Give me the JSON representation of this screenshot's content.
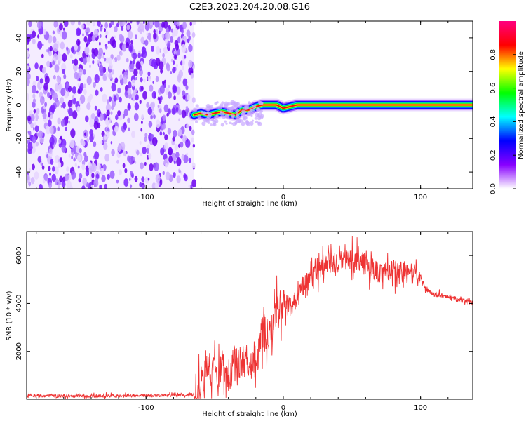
{
  "chart_data": [
    {
      "type": "heatmap",
      "title": "C2E3.2023.204.20.08.G16",
      "xlabel": "Height of straight line (km)",
      "ylabel": "Frequency (Hz)",
      "xlim": [
        -187,
        138
      ],
      "ylim": [
        -50,
        50
      ],
      "xticks": [
        -100,
        0,
        100
      ],
      "yticks": [
        -40,
        -20,
        0,
        20,
        40
      ],
      "noise_region_x": [
        -187,
        -65
      ],
      "signal_line": {
        "x": [
          -65,
          -60,
          -55,
          -50,
          -45,
          -40,
          -35,
          -30,
          -25,
          -20,
          -15,
          -10,
          -5,
          0,
          5,
          10,
          20,
          40,
          60,
          80,
          95,
          100,
          138
        ],
        "freq": [
          -6,
          -5,
          -6,
          -5,
          -4,
          -5,
          -6,
          -3,
          -3,
          -1,
          0,
          0,
          0,
          -2,
          -1,
          0,
          0,
          0,
          0,
          0,
          0,
          0,
          0
        ]
      },
      "colorbar": {
        "label": "Normalized spectral amplitude",
        "range": [
          0,
          1
        ],
        "ticks": [
          "0.0",
          "0.2",
          "0.4",
          "0.6",
          "0.8"
        ],
        "colors": [
          "#ffffff",
          "#8800ff",
          "#0000ff",
          "#00ffff",
          "#00ff00",
          "#ffff00",
          "#ff0000",
          "#ff0080"
        ]
      }
    },
    {
      "type": "line",
      "xlabel": "Height of straight line (km)",
      "ylabel": "SNR (10 * v/v)",
      "xlim": [
        -187,
        138
      ],
      "ylim": [
        0,
        7000
      ],
      "xticks": [
        -100,
        0,
        100
      ],
      "yticks": [
        2000,
        4000,
        6000
      ],
      "color": "#ee3333",
      "series": [
        {
          "x": [
            -187,
            -150,
            -120,
            -90,
            -65,
            -60,
            -55,
            -50,
            -45,
            -40,
            -35,
            -30,
            -25,
            -20,
            -15,
            -10,
            -5,
            0,
            5,
            10,
            15,
            20,
            25,
            30,
            40,
            50,
            60,
            70,
            80,
            90,
            100,
            105,
            110,
            120,
            130,
            138
          ],
          "values": [
            150,
            130,
            140,
            160,
            200,
            700,
            1300,
            1200,
            1400,
            1000,
            1500,
            1600,
            1600,
            1500,
            2800,
            2500,
            3800,
            4100,
            3900,
            4200,
            4800,
            5000,
            5300,
            5600,
            5700,
            5900,
            5600,
            5300,
            5400,
            5300,
            5100,
            4500,
            4400,
            4300,
            4150,
            4000
          ]
        }
      ]
    }
  ]
}
